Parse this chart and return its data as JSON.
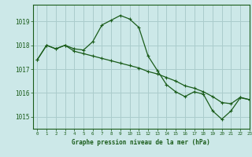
{
  "title": "Graphe pression niveau de la mer (hPa)",
  "background_color": "#cce8e8",
  "grid_color": "#aacccc",
  "line_color": "#1a5c1a",
  "xlim": [
    -0.5,
    23
  ],
  "ylim": [
    1014.5,
    1019.7
  ],
  "yticks": [
    1015,
    1016,
    1017,
    1018,
    1019
  ],
  "xticks": [
    0,
    1,
    2,
    3,
    4,
    5,
    6,
    7,
    8,
    9,
    10,
    11,
    12,
    13,
    14,
    15,
    16,
    17,
    18,
    19,
    20,
    21,
    22,
    23
  ],
  "series1_x": [
    0,
    1,
    2,
    3,
    4,
    5,
    6,
    7,
    8,
    9,
    10,
    11,
    12,
    13,
    14,
    15,
    16,
    17,
    18,
    19,
    20,
    21,
    22,
    23
  ],
  "series1_y": [
    1017.4,
    1018.0,
    1017.85,
    1018.0,
    1017.85,
    1017.8,
    1018.15,
    1018.85,
    1019.05,
    1019.25,
    1019.1,
    1018.75,
    1017.55,
    1016.95,
    1016.35,
    1016.05,
    1015.85,
    1016.05,
    1015.95,
    1015.25,
    1014.9,
    1015.25,
    1015.8,
    1015.72
  ],
  "series2_x": [
    0,
    1,
    2,
    3,
    4,
    5,
    6,
    7,
    8,
    9,
    10,
    11,
    12,
    13,
    14,
    15,
    16,
    17,
    18,
    19,
    20,
    21,
    22,
    23
  ],
  "series2_y": [
    1017.4,
    1018.0,
    1017.85,
    1018.0,
    1017.75,
    1017.65,
    1017.55,
    1017.45,
    1017.35,
    1017.25,
    1017.15,
    1017.05,
    1016.9,
    1016.8,
    1016.65,
    1016.5,
    1016.3,
    1016.2,
    1016.05,
    1015.85,
    1015.6,
    1015.55,
    1015.82,
    1015.72
  ]
}
